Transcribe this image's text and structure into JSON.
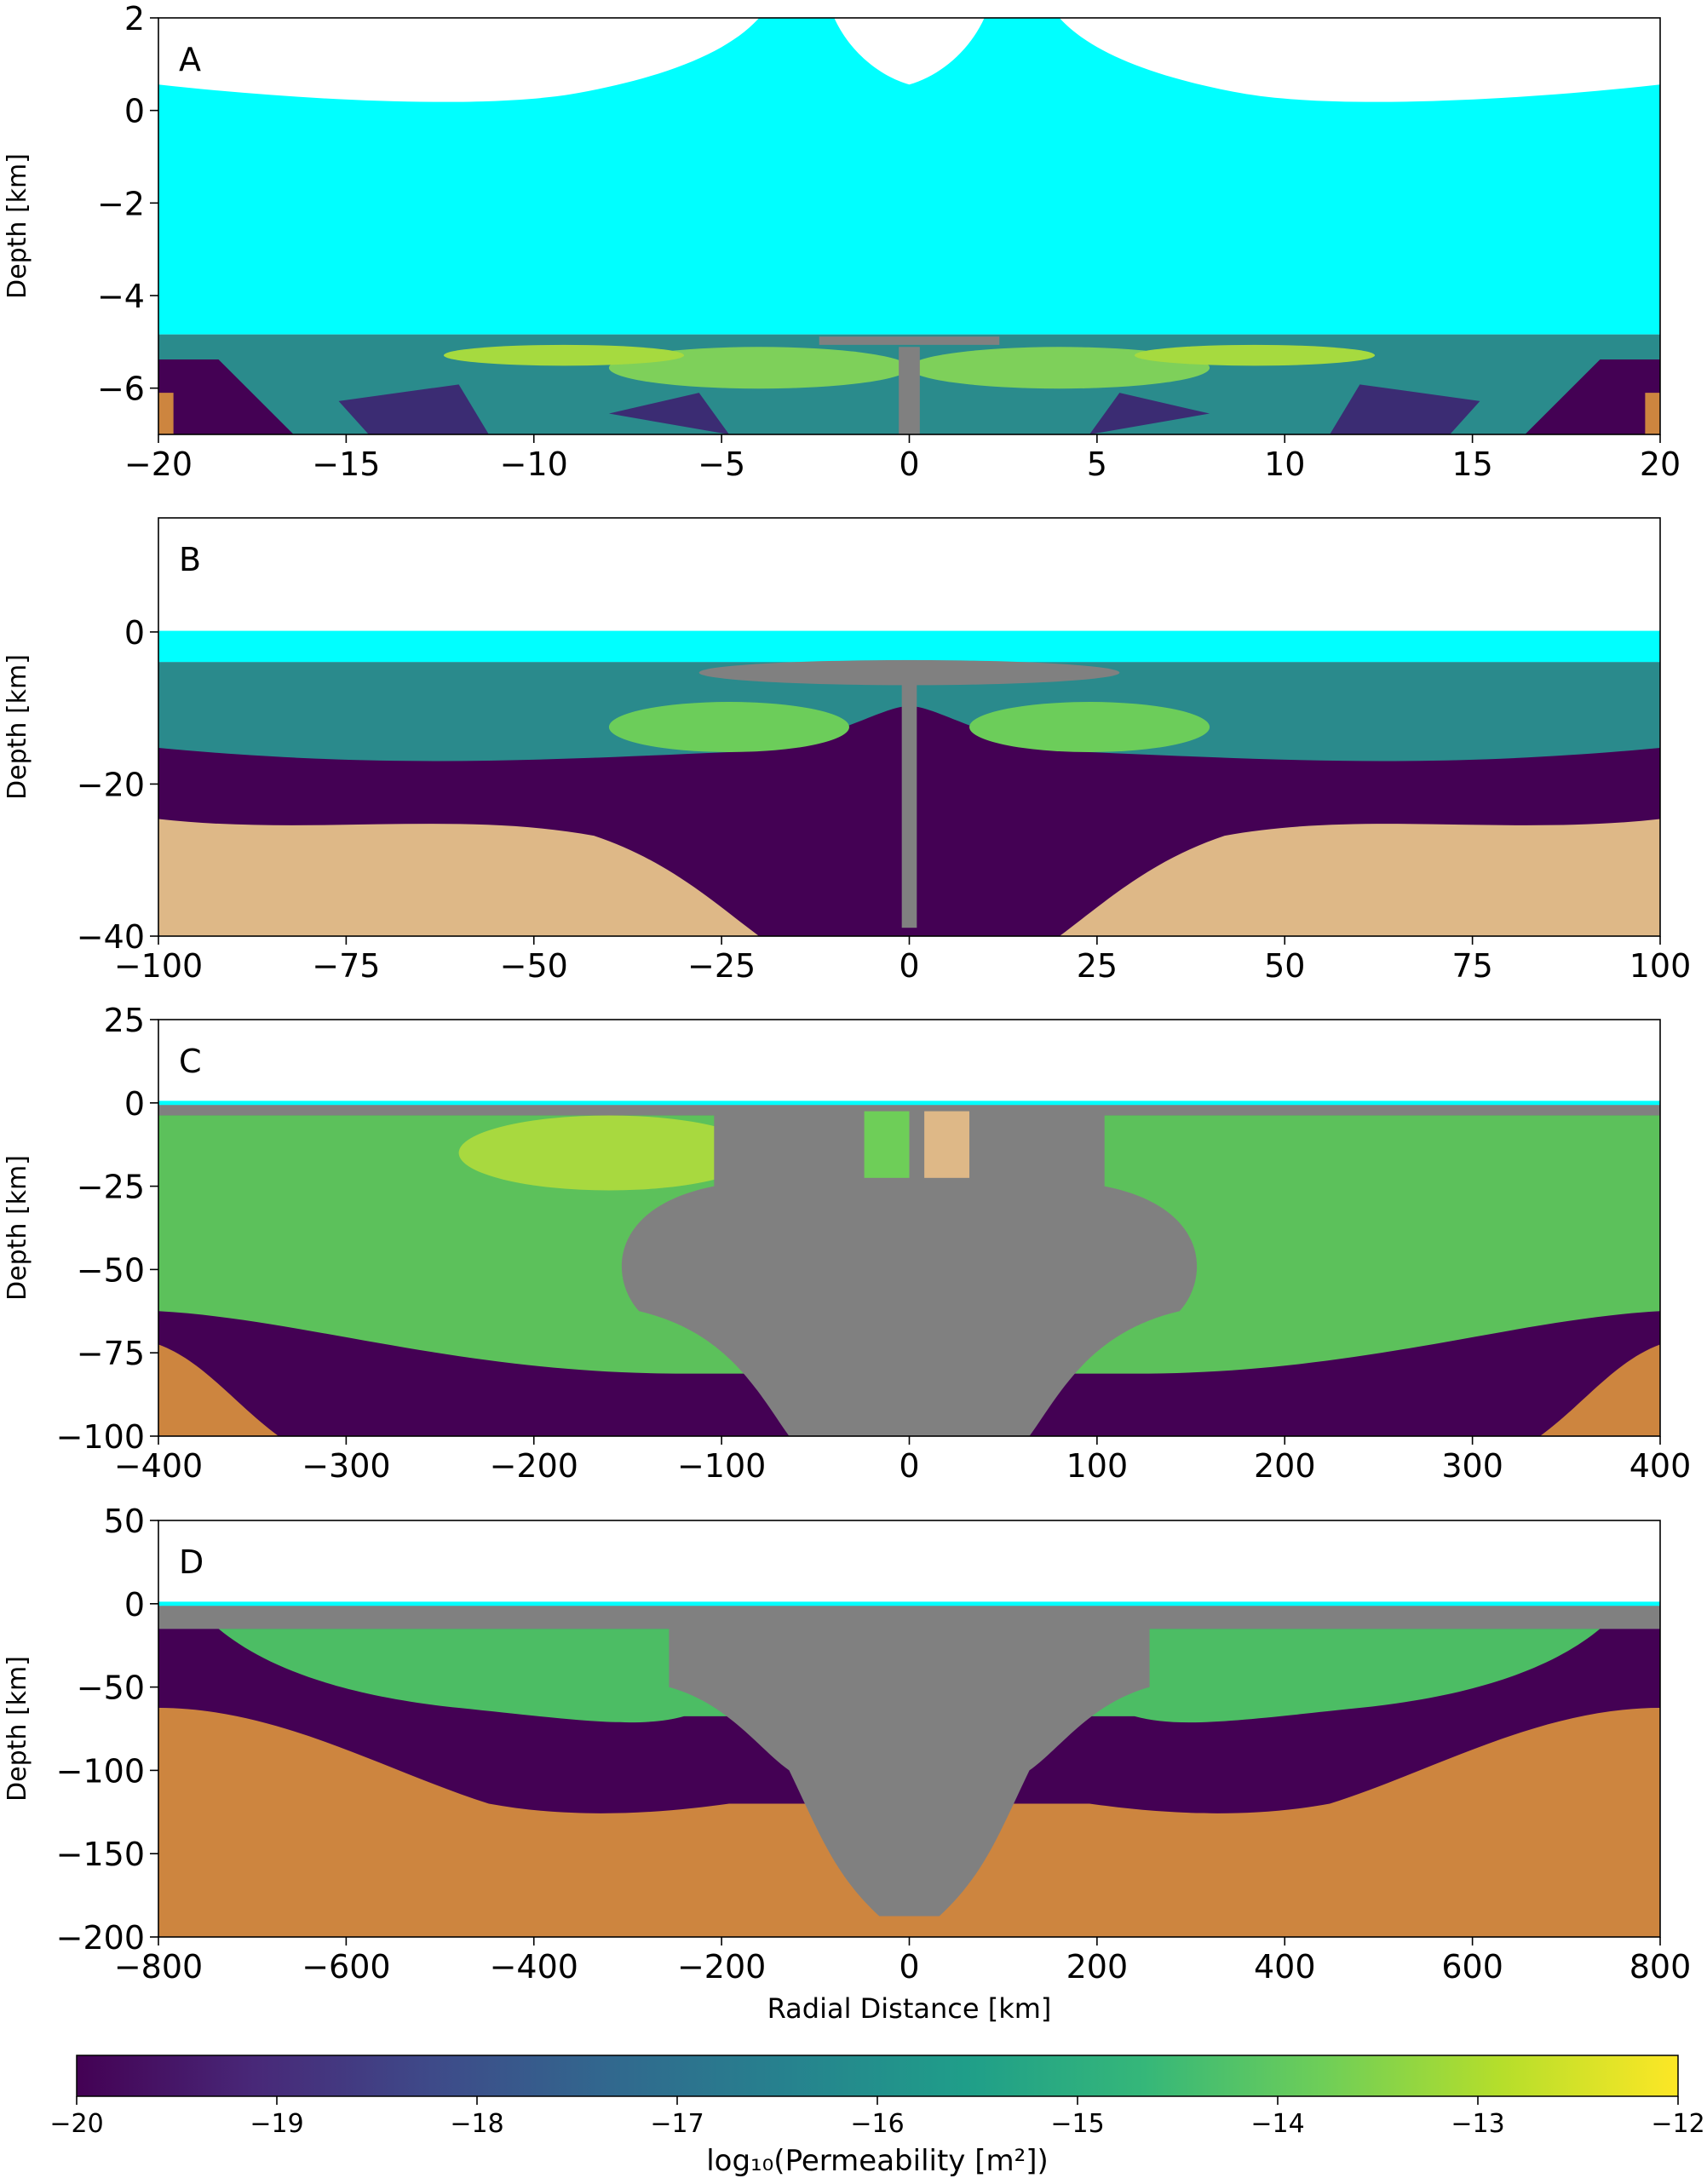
{
  "chart_data": [
    {
      "type": "field",
      "panel_label": "A",
      "ylabel": "Depth [km]",
      "xlim": [
        -20,
        20
      ],
      "xticks": [
        {
          "value": -20,
          "label": "−20"
        },
        {
          "value": -15,
          "label": "−15"
        },
        {
          "value": -10,
          "label": "−10"
        },
        {
          "value": -5,
          "label": "−5"
        },
        0,
        5,
        10,
        15,
        20
      ],
      "ylim": [
        -7,
        2
      ],
      "yticks": [
        {
          "value": -6,
          "label": "−6"
        },
        {
          "value": -4,
          "label": "−4"
        },
        {
          "value": -2,
          "label": "−2"
        },
        0,
        2
      ]
    },
    {
      "type": "field",
      "panel_label": "B",
      "ylabel": "Depth [km]",
      "xlim": [
        -100,
        100
      ],
      "xticks": [
        {
          "value": -100,
          "label": "−100"
        },
        {
          "value": -75,
          "label": "−75"
        },
        {
          "value": -50,
          "label": "−50"
        },
        {
          "value": -25,
          "label": "−25"
        },
        0,
        25,
        50,
        75,
        100
      ],
      "ylim": [
        -40,
        15
      ],
      "yticks": [
        {
          "value": -40,
          "label": "−40"
        },
        {
          "value": -20,
          "label": "−20"
        },
        0
      ]
    },
    {
      "type": "field",
      "panel_label": "C",
      "ylabel": "Depth [km]",
      "xlim": [
        -400,
        400
      ],
      "xticks": [
        {
          "value": -400,
          "label": "−400"
        },
        {
          "value": -300,
          "label": "−300"
        },
        {
          "value": -200,
          "label": "−200"
        },
        {
          "value": -100,
          "label": "−100"
        },
        0,
        100,
        200,
        300,
        400
      ],
      "ylim": [
        -100,
        25
      ],
      "yticks": [
        {
          "value": -100,
          "label": "−100"
        },
        {
          "value": -75,
          "label": "−75"
        },
        {
          "value": -50,
          "label": "−50"
        },
        {
          "value": -25,
          "label": "−25"
        },
        0,
        25
      ]
    },
    {
      "type": "field",
      "panel_label": "D",
      "ylabel": "Depth [km]",
      "xlabel": "Radial Distance [km]",
      "xlim": [
        -800,
        800
      ],
      "xticks": [
        {
          "value": -800,
          "label": "−800"
        },
        {
          "value": -600,
          "label": "−600"
        },
        {
          "value": -400,
          "label": "−400"
        },
        {
          "value": -200,
          "label": "−200"
        },
        0,
        200,
        400,
        600,
        800
      ],
      "ylim": [
        -200,
        50
      ],
      "yticks": [
        {
          "value": -200,
          "label": "−200"
        },
        {
          "value": -150,
          "label": "−150"
        },
        {
          "value": -100,
          "label": "−100"
        },
        {
          "value": -50,
          "label": "−50"
        },
        0,
        50
      ]
    },
    {
      "type": "colorbar",
      "label": "log₁₀(Permeability [m²])",
      "xlim": [
        -20,
        -12
      ],
      "xticks": [
        {
          "value": -20,
          "label": "−20"
        },
        {
          "value": -19,
          "label": "−19"
        },
        {
          "value": -18,
          "label": "−18"
        },
        {
          "value": -17,
          "label": "−17"
        },
        {
          "value": -16,
          "label": "−16"
        },
        {
          "value": -15,
          "label": "−15"
        },
        {
          "value": -14,
          "label": "−14"
        },
        {
          "value": -13,
          "label": "−13"
        },
        {
          "value": -12,
          "label": "−12"
        }
      ],
      "colors": [
        "#440154",
        "#482878",
        "#3e4a89",
        "#31688e",
        "#26828e",
        "#1f9e89",
        "#35b779",
        "#6ece58",
        "#b5de2b",
        "#fde725"
      ]
    }
  ]
}
